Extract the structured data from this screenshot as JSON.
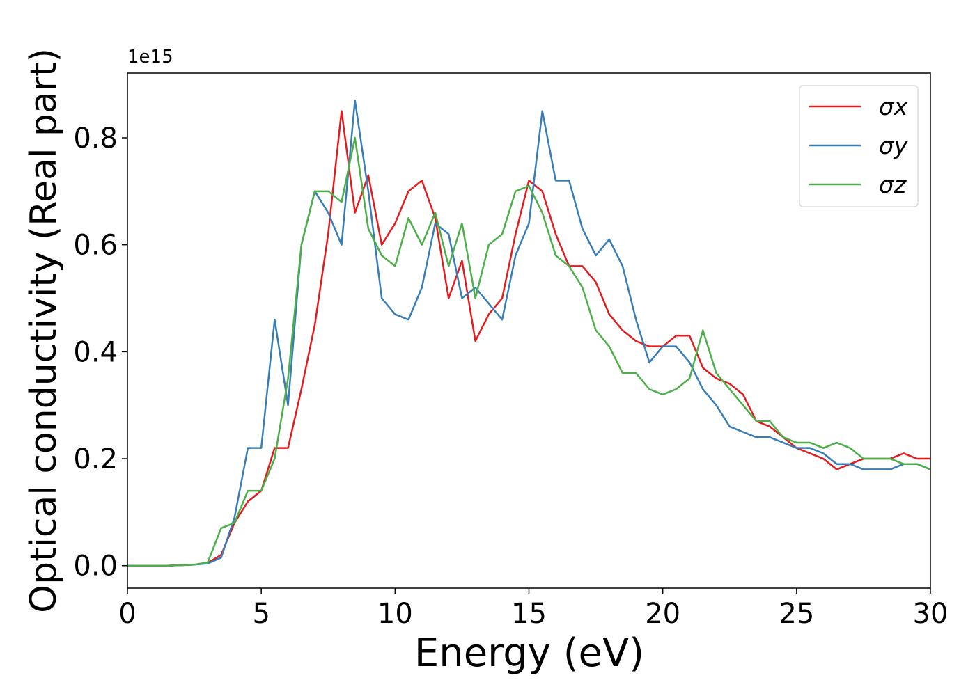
{
  "chart_data": {
    "type": "line",
    "xlabel": "Energy (eV)",
    "ylabel": "Optical conductivity (Real part)",
    "y_offset_label": "1e15",
    "x": [
      0,
      0.5,
      1,
      1.5,
      2,
      2.5,
      3,
      3.5,
      4,
      4.5,
      5,
      5.5,
      6,
      6.5,
      7,
      7.5,
      8,
      8.5,
      9,
      9.5,
      10,
      10.5,
      11,
      11.5,
      12,
      12.5,
      13,
      13.5,
      14,
      14.5,
      15,
      15.5,
      16,
      16.5,
      17,
      17.5,
      18,
      18.5,
      19,
      19.5,
      20,
      20.5,
      21,
      21.5,
      22,
      22.5,
      23,
      23.5,
      24,
      24.5,
      25,
      25.5,
      26,
      26.5,
      27,
      27.5,
      28,
      28.5,
      29,
      29.5,
      30
    ],
    "series": [
      {
        "name": "σx",
        "color": "#e41a1c",
        "values": [
          0,
          0,
          0,
          0,
          0.001,
          0.002,
          0.005,
          0.02,
          0.08,
          0.12,
          0.14,
          0.22,
          0.22,
          0.33,
          0.45,
          0.62,
          0.85,
          0.66,
          0.73,
          0.6,
          0.64,
          0.7,
          0.72,
          0.65,
          0.5,
          0.57,
          0.42,
          0.47,
          0.5,
          0.62,
          0.72,
          0.7,
          0.62,
          0.56,
          0.56,
          0.53,
          0.47,
          0.44,
          0.42,
          0.41,
          0.41,
          0.43,
          0.43,
          0.37,
          0.35,
          0.34,
          0.32,
          0.27,
          0.26,
          0.24,
          0.22,
          0.21,
          0.2,
          0.18,
          0.19,
          0.2,
          0.2,
          0.2,
          0.21,
          0.2,
          0.2
        ]
      },
      {
        "name": "σy",
        "color": "#377eb8",
        "values": [
          0,
          0,
          0,
          0,
          0.001,
          0.002,
          0.004,
          0.015,
          0.09,
          0.22,
          0.22,
          0.46,
          0.3,
          0.6,
          0.7,
          0.66,
          0.6,
          0.87,
          0.7,
          0.5,
          0.47,
          0.46,
          0.52,
          0.64,
          0.62,
          0.5,
          0.52,
          0.49,
          0.46,
          0.58,
          0.64,
          0.85,
          0.72,
          0.72,
          0.63,
          0.58,
          0.61,
          0.56,
          0.46,
          0.38,
          0.41,
          0.41,
          0.38,
          0.33,
          0.3,
          0.26,
          0.25,
          0.24,
          0.24,
          0.23,
          0.22,
          0.22,
          0.21,
          0.19,
          0.19,
          0.18,
          0.18,
          0.18,
          0.19,
          0.19,
          0.18
        ]
      },
      {
        "name": "σz",
        "color": "#4daf4a",
        "values": [
          0,
          0,
          0,
          0,
          0.001,
          0.002,
          0.006,
          0.07,
          0.08,
          0.14,
          0.14,
          0.2,
          0.35,
          0.6,
          0.7,
          0.7,
          0.68,
          0.8,
          0.63,
          0.58,
          0.56,
          0.65,
          0.6,
          0.66,
          0.56,
          0.64,
          0.5,
          0.6,
          0.62,
          0.7,
          0.71,
          0.66,
          0.58,
          0.56,
          0.52,
          0.44,
          0.41,
          0.36,
          0.36,
          0.33,
          0.32,
          0.33,
          0.35,
          0.44,
          0.36,
          0.33,
          0.3,
          0.27,
          0.27,
          0.24,
          0.23,
          0.23,
          0.22,
          0.23,
          0.22,
          0.2,
          0.2,
          0.2,
          0.19,
          0.19,
          0.18
        ]
      }
    ],
    "xlim": [
      0,
      30
    ],
    "xticks": [
      0,
      5,
      10,
      15,
      20,
      25,
      30
    ],
    "ylim": [
      -0.042,
      0.921
    ],
    "yticks": [
      {
        "value": 0,
        "label": "0.0"
      },
      0.2,
      0.4,
      0.6,
      0.8
    ],
    "legend": "upper right",
    "grid": false
  }
}
